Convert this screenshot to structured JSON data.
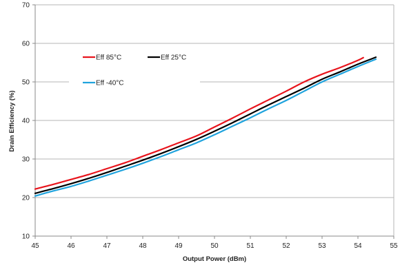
{
  "chart_data": {
    "type": "line",
    "xlabel": "Output Power (dBm)",
    "ylabel": "Drain Efficiency (%)",
    "xlim": [
      45,
      55
    ],
    "ylim": [
      10,
      70
    ],
    "x_ticks": [
      "45",
      "46",
      "47",
      "48",
      "49",
      "50",
      "51",
      "52",
      "53",
      "54",
      "55"
    ],
    "y_ticks": [
      "10",
      "20",
      "30",
      "40",
      "50",
      "60",
      "70"
    ],
    "grid": "horizontal",
    "legend": "upper-left",
    "series": [
      {
        "name": "Eff 85°C",
        "color": "#e8141c",
        "x": [
          45.0,
          45.5,
          46.0,
          46.5,
          47.0,
          47.5,
          48.0,
          48.5,
          49.0,
          49.5,
          50.0,
          50.5,
          51.0,
          51.5,
          52.0,
          52.5,
          53.0,
          53.5,
          54.0,
          54.15
        ],
        "y": [
          22.2,
          23.4,
          24.7,
          26.0,
          27.5,
          29.0,
          30.7,
          32.4,
          34.2,
          36.0,
          38.3,
          40.6,
          43.0,
          45.3,
          47.6,
          50.0,
          52.0,
          53.7,
          55.6,
          56.3
        ]
      },
      {
        "name": "Eff 25°C",
        "color": "#000000",
        "x": [
          45.0,
          45.5,
          46.0,
          46.5,
          47.0,
          47.5,
          48.0,
          48.5,
          49.0,
          49.5,
          50.0,
          50.5,
          51.0,
          51.5,
          52.0,
          52.5,
          53.0,
          53.5,
          54.0,
          54.5
        ],
        "y": [
          21.1,
          22.3,
          23.6,
          25.0,
          26.5,
          28.1,
          29.7,
          31.4,
          33.2,
          35.1,
          37.2,
          39.4,
          41.7,
          44.0,
          46.2,
          48.4,
          50.7,
          52.6,
          54.6,
          56.4
        ]
      },
      {
        "name": "Eff -40°C",
        "color": "#1fa3dd",
        "x": [
          45.0,
          45.5,
          46.0,
          46.5,
          47.0,
          47.5,
          48.0,
          48.5,
          49.0,
          49.5,
          50.0,
          50.5,
          51.0,
          51.5,
          52.0,
          52.5,
          53.0,
          53.5,
          54.0,
          54.5
        ],
        "y": [
          20.4,
          21.7,
          22.9,
          24.3,
          25.8,
          27.3,
          28.9,
          30.6,
          32.4,
          34.2,
          36.3,
          38.5,
          40.7,
          43.0,
          45.2,
          47.6,
          50.0,
          52.0,
          54.0,
          55.9
        ]
      }
    ]
  }
}
